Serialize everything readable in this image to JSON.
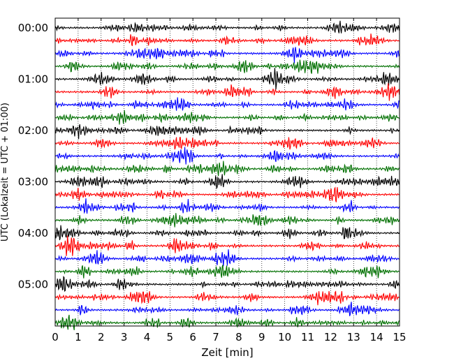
{
  "chart_data": {
    "type": "line",
    "xlabel": "Zeit  [min]",
    "ylabel": "UTC (Lokalzeit = UTC + 01:00)",
    "xlim": [
      0,
      15
    ],
    "x_ticks": [
      "0",
      "1",
      "2",
      "3",
      "4",
      "5",
      "6",
      "7",
      "8",
      "9",
      "10",
      "11",
      "12",
      "13",
      "14",
      "15"
    ],
    "y_tick_labels": [
      "00:00",
      "01:00",
      "02:00",
      "03:00",
      "04:00",
      "05:00"
    ],
    "trace_interval_minutes": 15,
    "trace_count": 24,
    "trace_colors": [
      "#000000",
      "#ff0000",
      "#0000ff",
      "#007000"
    ],
    "grid": "vertical dotted",
    "legend": "none"
  }
}
